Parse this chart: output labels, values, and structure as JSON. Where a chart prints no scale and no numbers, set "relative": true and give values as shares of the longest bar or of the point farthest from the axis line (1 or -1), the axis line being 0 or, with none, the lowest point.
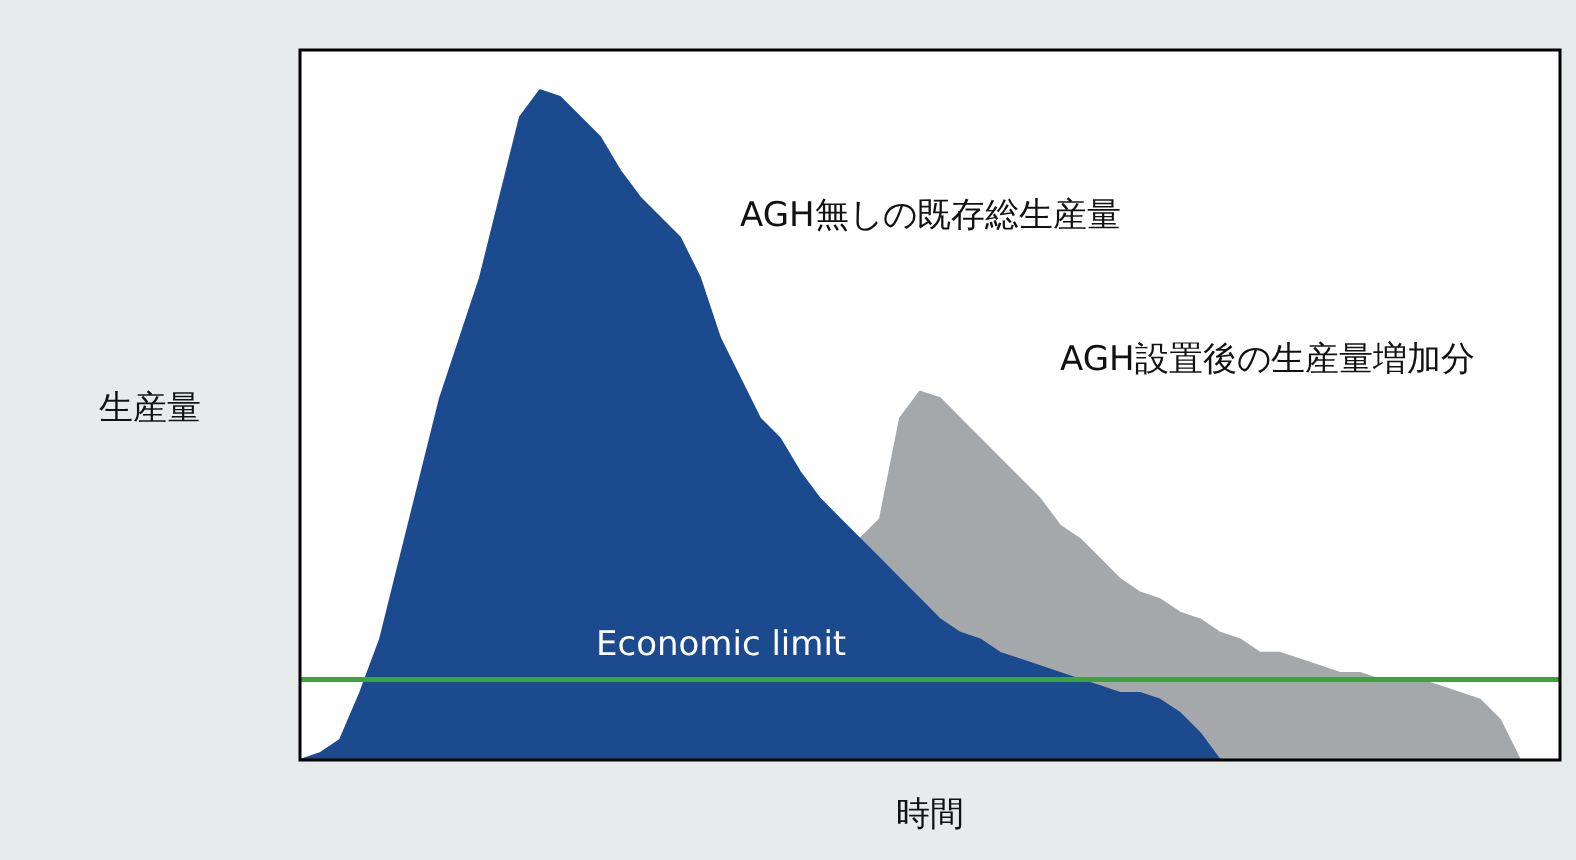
{
  "chart_data": {
    "type": "area",
    "relative": true,
    "xlabel": "時間",
    "ylabel": "生産量",
    "legend": false,
    "stacked": true,
    "categories": [
      null,
      null,
      null,
      null,
      null,
      null,
      null,
      null,
      null,
      null,
      null,
      null,
      null,
      null,
      null,
      null,
      null,
      null,
      null,
      null,
      null,
      null,
      null,
      null,
      null,
      null,
      null,
      null,
      null,
      null,
      null,
      null,
      null,
      null,
      null,
      null,
      null,
      null,
      null,
      null,
      null,
      null,
      null,
      null,
      null,
      null,
      null,
      null,
      null,
      null,
      null,
      null,
      null,
      null,
      null,
      null,
      null,
      null,
      null,
      null,
      null,
      null,
      null,
      null
    ],
    "series": [
      {
        "color": "#1b4a8f",
        "values": [
          0,
          0.01,
          0.03,
          0.1,
          0.18,
          0.3,
          0.42,
          0.54,
          0.63,
          0.72,
          0.84,
          0.96,
          1.0,
          0.99,
          0.96,
          0.93,
          0.88,
          0.84,
          0.81,
          0.78,
          0.72,
          0.63,
          0.57,
          0.51,
          0.48,
          0.43,
          0.39,
          0.36,
          0.33,
          0.3,
          0.27,
          0.24,
          0.21,
          0.19,
          0.18,
          0.16,
          0.15,
          0.14,
          0.13,
          0.12,
          0.11,
          0.1,
          0.1,
          0.09,
          0.07,
          0.04,
          0,
          0,
          0,
          0,
          0,
          0,
          0,
          0,
          0,
          0,
          0,
          0,
          0,
          0,
          0,
          0,
          0,
          0
        ]
      },
      {
        "color": "#a4a8aa",
        "values": [
          null,
          null,
          null,
          null,
          null,
          null,
          null,
          null,
          null,
          null,
          null,
          null,
          null,
          null,
          null,
          null,
          null,
          null,
          null,
          null,
          null,
          null,
          null,
          null,
          null,
          null,
          null,
          null,
          0,
          0.06,
          0.24,
          0.31,
          0.33,
          0.32,
          0.3,
          0.29,
          0.27,
          0.25,
          0.22,
          0.21,
          0.19,
          0.17,
          0.15,
          0.15,
          0.15,
          0.17,
          0.19,
          0.18,
          0.16,
          0.16,
          0.15,
          0.14,
          0.13,
          0.13,
          0.12,
          0.12,
          0.12,
          0.11,
          0.1,
          0.09,
          0.06,
          0,
          null,
          null
        ]
      }
    ],
    "ref_lines": [
      {
        "axis": "y",
        "value": 0.12,
        "label": "Economic limit",
        "color": "#3aa63a"
      }
    ],
    "annotations": [
      "AGH無しの既存総生産量",
      "AGH設置後の生産量増加分"
    ]
  }
}
